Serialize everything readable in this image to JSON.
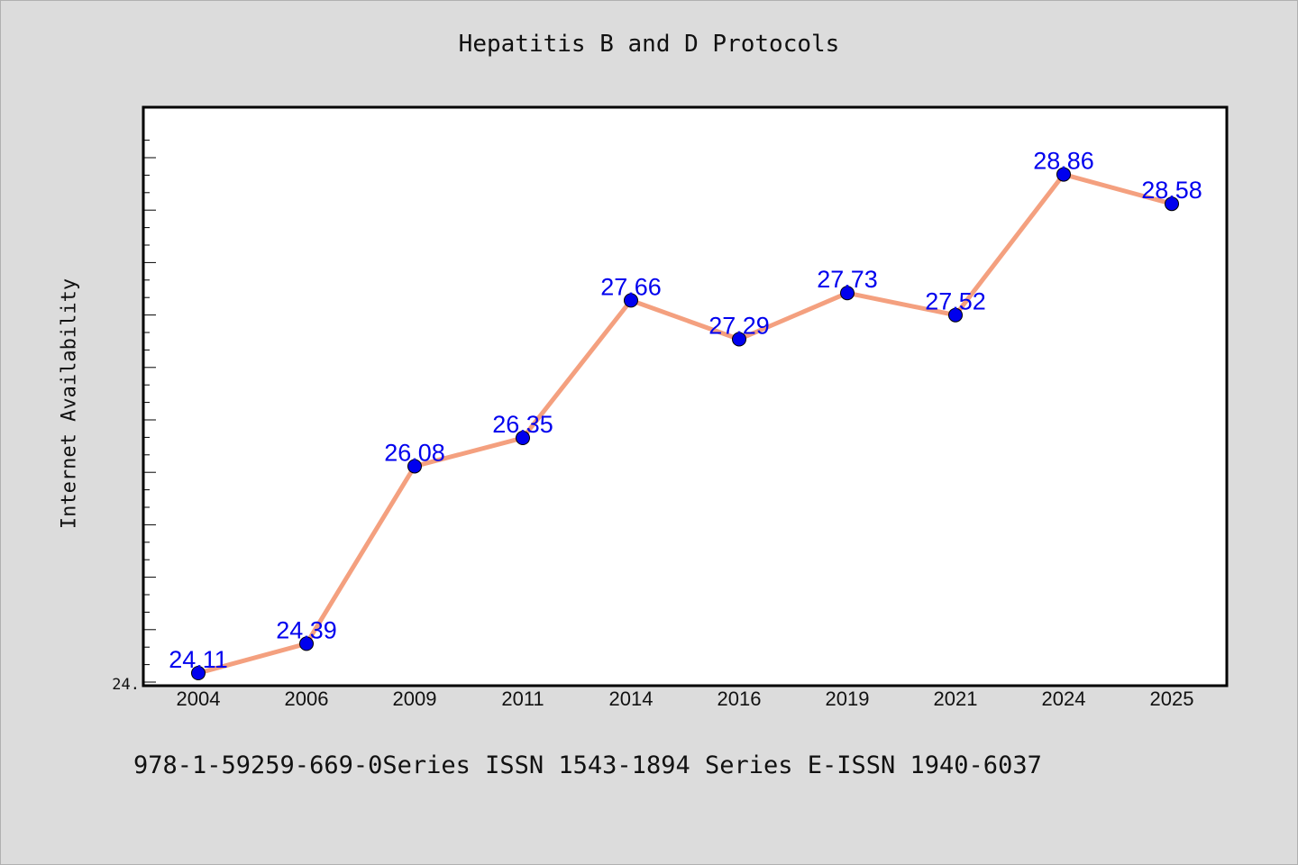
{
  "chart_data": {
    "type": "line",
    "title": "Hepatitis B and D Protocols",
    "xlabel": "",
    "ylabel": "Internet Availability",
    "categories": [
      "2004",
      "2006",
      "2009",
      "2011",
      "2014",
      "2016",
      "2019",
      "2021",
      "2024",
      "2025"
    ],
    "values": [
      24.11,
      24.39,
      26.08,
      26.35,
      27.66,
      27.29,
      27.73,
      27.52,
      28.86,
      28.58
    ],
    "data_labels": [
      "24.11",
      "24.39",
      "26.08",
      "26.35",
      "27.66",
      "27.29",
      "27.73",
      "27.52",
      "28.86",
      "28.58"
    ],
    "y_tick_labels": [
      "24."
    ],
    "ylim": [
      23.99,
      29.5
    ],
    "grid": false,
    "line_color": "#f4a07f",
    "marker_color": "#0000ee",
    "label_color": "#0000ee"
  },
  "footer": {
    "text": "978-1-59259-669-0Series ISSN 1543-1894 Series E-ISSN 1940-6037"
  }
}
